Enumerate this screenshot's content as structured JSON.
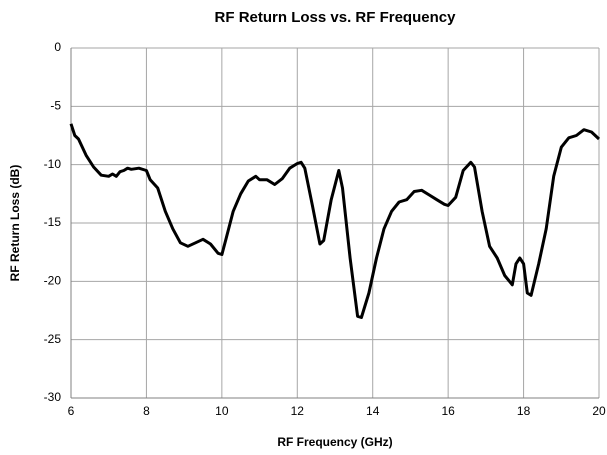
{
  "chart_data": {
    "type": "line",
    "title": "RF Return Loss vs. RF Frequency",
    "xlabel": "RF Frequency (GHz)",
    "ylabel": "RF Return Loss (dB)",
    "xlim": [
      6,
      20
    ],
    "xticks": [
      6,
      8,
      10,
      12,
      14,
      16,
      18,
      20
    ],
    "ylim": [
      -30,
      0
    ],
    "yticks": [
      -30,
      -25,
      -20,
      -15,
      -10,
      -5,
      0
    ],
    "grid": true,
    "x": [
      6.0,
      6.1,
      6.2,
      6.4,
      6.6,
      6.8,
      7.0,
      7.1,
      7.2,
      7.3,
      7.4,
      7.5,
      7.6,
      7.8,
      8.0,
      8.1,
      8.3,
      8.5,
      8.7,
      8.9,
      9.1,
      9.3,
      9.5,
      9.7,
      9.9,
      10.0,
      10.1,
      10.3,
      10.5,
      10.7,
      10.9,
      11.0,
      11.2,
      11.4,
      11.6,
      11.8,
      12.0,
      12.1,
      12.2,
      12.4,
      12.6,
      12.7,
      12.9,
      13.1,
      13.2,
      13.4,
      13.6,
      13.7,
      13.9,
      14.1,
      14.3,
      14.5,
      14.7,
      14.9,
      15.1,
      15.3,
      15.5,
      15.7,
      15.9,
      16.0,
      16.2,
      16.4,
      16.6,
      16.7,
      16.9,
      17.1,
      17.3,
      17.5,
      17.7,
      17.8,
      17.9,
      18.0,
      18.1,
      18.2,
      18.4,
      18.6,
      18.8,
      19.0,
      19.2,
      19.4,
      19.6,
      19.8,
      20.0
    ],
    "series": [
      {
        "color": "#000000",
        "values": [
          -6.5,
          -7.5,
          -7.8,
          -9.2,
          -10.2,
          -10.9,
          -11.0,
          -10.8,
          -11.0,
          -10.6,
          -10.5,
          -10.3,
          -10.4,
          -10.3,
          -10.5,
          -11.3,
          -12.0,
          -14.0,
          -15.5,
          -16.7,
          -17.0,
          -16.7,
          -16.4,
          -16.8,
          -17.6,
          -17.7,
          -16.5,
          -14.0,
          -12.5,
          -11.4,
          -11.0,
          -11.3,
          -11.3,
          -11.7,
          -11.2,
          -10.3,
          -9.9,
          -9.8,
          -10.3,
          -13.5,
          -16.8,
          -16.5,
          -13.0,
          -10.5,
          -12.0,
          -18.0,
          -23.0,
          -23.1,
          -21.0,
          -18.0,
          -15.5,
          -14.0,
          -13.2,
          -13.0,
          -12.3,
          -12.2,
          -12.6,
          -13.0,
          -13.4,
          -13.5,
          -12.8,
          -10.5,
          -9.8,
          -10.2,
          -14.0,
          -17.0,
          -18.0,
          -19.5,
          -20.3,
          -18.5,
          -18.0,
          -18.5,
          -21.0,
          -21.2,
          -18.5,
          -15.5,
          -11.0,
          -8.5,
          -7.7,
          -7.5,
          -7.0,
          -7.2,
          -7.8
        ]
      }
    ]
  }
}
